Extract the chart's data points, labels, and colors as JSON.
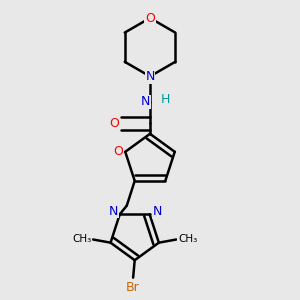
{
  "bg_color": "#e8e8e8",
  "atom_colors": {
    "C": "#000000",
    "N": "#0000cc",
    "O": "#ff0000",
    "Br": "#cc6600",
    "H": "#009999"
  },
  "bond_color": "#000000",
  "bond_width": 1.8,
  "dbo": 0.018
}
